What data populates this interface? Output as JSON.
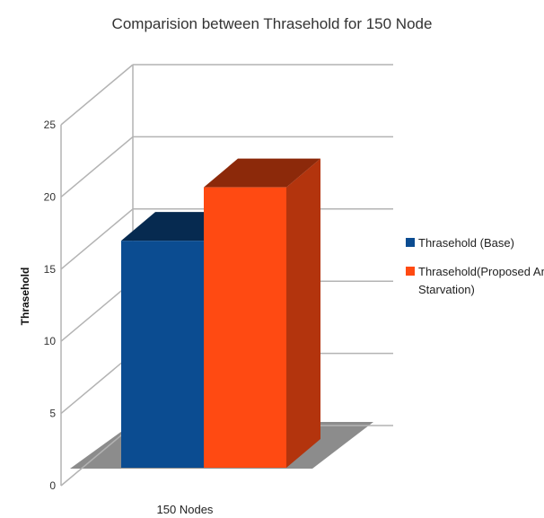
{
  "chart_data": {
    "type": "bar",
    "style": "3d-clustered-column",
    "title": "Comparision between Thrasehold for 150 Node",
    "ylabel": "Thrasehold",
    "xlabel": "",
    "categories": [
      "150 Nodes"
    ],
    "series": [
      {
        "name": "Thrasehold (Base)",
        "values": [
          17
        ],
        "color": "#0b4c91"
      },
      {
        "name": "Thrasehold(Proposed Anti Starvation)",
        "values": [
          21
        ],
        "color": "#ff4a12"
      }
    ],
    "ylim": [
      0,
      25
    ],
    "yticks": [
      0,
      5,
      10,
      15,
      20,
      25
    ],
    "grid": true,
    "legend_position": "right"
  }
}
